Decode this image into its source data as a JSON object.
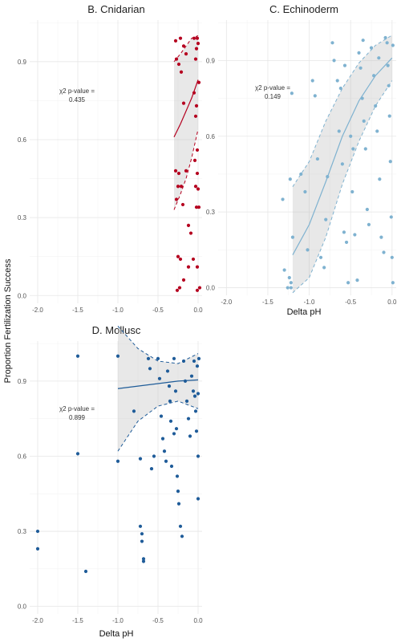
{
  "figure": {
    "ylabel": "Proportion Fertilization Success"
  },
  "chart_data": [
    {
      "type": "scatter",
      "title": "B. Cnidarian",
      "xlabel": "",
      "ylabel": "Proportion Fertilization Success",
      "xlim": [
        -2.1,
        0.05
      ],
      "ylim": [
        -0.03,
        1.06
      ],
      "xticks": [
        "-2.0",
        "-1.5",
        "-1.0",
        "-0.5",
        "0.0"
      ],
      "yticks": [
        "0.0",
        "0.3",
        "0.6",
        "0.9"
      ],
      "color": "#B5001F",
      "annotation": [
        "χ2 p-value =",
        "0.435"
      ],
      "grid": true,
      "series": [
        {
          "points": [
            [
              -0.28,
              0.98
            ],
            [
              -0.22,
              0.99
            ],
            [
              -0.18,
              0.96
            ],
            [
              -0.05,
              0.99
            ],
            [
              -0.01,
              0.99
            ],
            [
              0.0,
              0.97
            ],
            [
              -0.02,
              0.95
            ],
            [
              -0.15,
              0.93
            ],
            [
              -0.27,
              0.91
            ],
            [
              -0.24,
              0.89
            ],
            [
              -0.03,
              0.91
            ],
            [
              -0.21,
              0.86
            ],
            [
              -0.05,
              0.78
            ],
            [
              0.01,
              0.82
            ],
            [
              -0.18,
              0.74
            ],
            [
              -0.02,
              0.73
            ],
            [
              -0.03,
              0.69
            ],
            [
              -0.04,
              0.52
            ],
            [
              -0.01,
              0.56
            ],
            [
              -0.28,
              0.48
            ],
            [
              -0.24,
              0.47
            ],
            [
              -0.15,
              0.48
            ],
            [
              -0.01,
              0.47
            ],
            [
              -0.25,
              0.42
            ],
            [
              -0.21,
              0.42
            ],
            [
              -0.03,
              0.42
            ],
            [
              0.0,
              0.41
            ],
            [
              -0.27,
              0.37
            ],
            [
              -0.19,
              0.35
            ],
            [
              -0.02,
              0.34
            ],
            [
              0.01,
              0.34
            ],
            [
              -0.12,
              0.27
            ],
            [
              -0.09,
              0.24
            ],
            [
              -0.25,
              0.15
            ],
            [
              -0.22,
              0.14
            ],
            [
              -0.12,
              0.11
            ],
            [
              -0.06,
              0.14
            ],
            [
              -0.01,
              0.11
            ],
            [
              -0.18,
              0.06
            ],
            [
              -0.23,
              0.03
            ],
            [
              -0.26,
              0.02
            ],
            [
              0.02,
              0.03
            ],
            [
              -0.01,
              0.02
            ]
          ],
          "fit_x": [
            -0.3,
            -0.22,
            -0.15,
            -0.08,
            0.0
          ],
          "fit_y": [
            0.61,
            0.66,
            0.71,
            0.76,
            0.83
          ],
          "ci_upper": [
            0.9,
            0.93,
            0.96,
            0.99,
            1.0
          ],
          "ci_lower": [
            0.33,
            0.39,
            0.45,
            0.53,
            0.64
          ]
        }
      ]
    },
    {
      "type": "scatter",
      "title": "C. Echinoderm",
      "xlabel": "Delta pH",
      "ylabel": "",
      "xlim": [
        -2.1,
        0.05
      ],
      "ylim": [
        -0.03,
        1.06
      ],
      "xticks": [
        "-2.0",
        "-1.5",
        "-1.0",
        "-0.5",
        "0.0"
      ],
      "yticks": [
        "0.0",
        "0.3",
        "0.6",
        "0.9"
      ],
      "color": "#7FB2D0",
      "annotation": [
        "χ2 p-value =",
        "0.149"
      ],
      "grid": true,
      "series": [
        {
          "points": [
            [
              -1.32,
              0.35
            ],
            [
              -1.23,
              0.43
            ],
            [
              -1.21,
              0.77
            ],
            [
              -1.2,
              0.2
            ],
            [
              -1.24,
              0.04
            ],
            [
              -1.22,
              0.02
            ],
            [
              -1.26,
              0.0
            ],
            [
              -1.22,
              0.0
            ],
            [
              -1.3,
              0.07
            ],
            [
              -1.1,
              0.45
            ],
            [
              -1.05,
              0.38
            ],
            [
              -1.02,
              0.15
            ],
            [
              -0.96,
              0.82
            ],
            [
              -0.93,
              0.76
            ],
            [
              -0.9,
              0.51
            ],
            [
              -0.86,
              0.12
            ],
            [
              -0.82,
              0.08
            ],
            [
              -0.8,
              0.27
            ],
            [
              -0.78,
              0.44
            ],
            [
              -0.72,
              0.97
            ],
            [
              -0.7,
              0.9
            ],
            [
              -0.66,
              0.82
            ],
            [
              -0.64,
              0.62
            ],
            [
              -0.6,
              0.49
            ],
            [
              -0.58,
              0.22
            ],
            [
              -0.55,
              0.18
            ],
            [
              -0.53,
              0.02
            ],
            [
              -0.5,
              0.6
            ],
            [
              -0.48,
              0.38
            ],
            [
              -0.45,
              0.21
            ],
            [
              -0.42,
              0.03
            ],
            [
              -0.4,
              0.93
            ],
            [
              -0.38,
              0.87
            ],
            [
              -0.36,
              0.75
            ],
            [
              -0.34,
              0.66
            ],
            [
              -0.32,
              0.55
            ],
            [
              -0.3,
              0.31
            ],
            [
              -0.28,
              0.25
            ],
            [
              -0.25,
              0.95
            ],
            [
              -0.22,
              0.84
            ],
            [
              -0.2,
              0.72
            ],
            [
              -0.18,
              0.62
            ],
            [
              -0.15,
              0.43
            ],
            [
              -0.13,
              0.2
            ],
            [
              -0.1,
              0.14
            ],
            [
              -0.08,
              0.99
            ],
            [
              -0.06,
              0.97
            ],
            [
              -0.05,
              0.88
            ],
            [
              -0.04,
              0.8
            ],
            [
              -0.03,
              0.68
            ],
            [
              -0.02,
              0.5
            ],
            [
              -0.01,
              0.28
            ],
            [
              0.0,
              0.12
            ],
            [
              0.01,
              0.02
            ],
            [
              -0.47,
              0.55
            ],
            [
              -0.57,
              0.88
            ],
            [
              -0.62,
              0.79
            ],
            [
              -0.35,
              0.98
            ],
            [
              -0.16,
              0.91
            ],
            [
              0.01,
              0.96
            ]
          ],
          "fit_x": [
            -1.2,
            -1.0,
            -0.8,
            -0.6,
            -0.4,
            -0.2,
            0.0
          ],
          "fit_y": [
            0.13,
            0.25,
            0.42,
            0.6,
            0.74,
            0.84,
            0.91
          ],
          "ci_upper": [
            0.4,
            0.5,
            0.66,
            0.79,
            0.89,
            0.96,
            1.0
          ],
          "ci_lower": [
            -0.02,
            0.04,
            0.2,
            0.41,
            0.58,
            0.72,
            0.82
          ]
        }
      ]
    },
    {
      "type": "scatter",
      "title": "D. Mollusc",
      "xlabel": "Delta pH",
      "ylabel": "",
      "xlim": [
        -2.1,
        0.05
      ],
      "ylim": [
        -0.03,
        1.06
      ],
      "xticks": [
        "-2.0",
        "-1.5",
        "-1.0",
        "-0.5",
        "0.0"
      ],
      "yticks": [
        "0.0",
        "0.3",
        "0.6",
        "0.9"
      ],
      "color": "#1F5C99",
      "annotation": [
        "χ2 p-value =",
        "0.899"
      ],
      "grid": true,
      "series": [
        {
          "points": [
            [
              -2.0,
              0.3
            ],
            [
              -2.0,
              0.23
            ],
            [
              -1.5,
              1.0
            ],
            [
              -1.5,
              0.61
            ],
            [
              -1.4,
              0.14
            ],
            [
              -1.0,
              1.0
            ],
            [
              -1.0,
              0.58
            ],
            [
              -0.8,
              0.78
            ],
            [
              -0.72,
              0.59
            ],
            [
              -0.72,
              0.32
            ],
            [
              -0.7,
              0.29
            ],
            [
              -0.7,
              0.26
            ],
            [
              -0.68,
              0.19
            ],
            [
              -0.68,
              0.18
            ],
            [
              -0.62,
              0.99
            ],
            [
              -0.6,
              0.95
            ],
            [
              -0.58,
              0.55
            ],
            [
              -0.55,
              0.6
            ],
            [
              -0.5,
              0.99
            ],
            [
              -0.48,
              0.91
            ],
            [
              -0.46,
              0.76
            ],
            [
              -0.44,
              0.67
            ],
            [
              -0.42,
              0.62
            ],
            [
              -0.4,
              0.58
            ],
            [
              -0.38,
              0.94
            ],
            [
              -0.36,
              0.88
            ],
            [
              -0.35,
              0.82
            ],
            [
              -0.34,
              0.74
            ],
            [
              -0.33,
              0.56
            ],
            [
              -0.3,
              0.99
            ],
            [
              -0.28,
              0.86
            ],
            [
              -0.27,
              0.71
            ],
            [
              -0.26,
              0.52
            ],
            [
              -0.25,
              0.46
            ],
            [
              -0.24,
              0.41
            ],
            [
              -0.22,
              0.32
            ],
            [
              -0.2,
              0.28
            ],
            [
              -0.18,
              0.98
            ],
            [
              -0.16,
              0.9
            ],
            [
              -0.14,
              0.82
            ],
            [
              -0.12,
              0.75
            ],
            [
              -0.1,
              0.68
            ],
            [
              -0.08,
              0.92
            ],
            [
              -0.06,
              0.86
            ],
            [
              -0.05,
              0.98
            ],
            [
              -0.04,
              0.84
            ],
            [
              -0.03,
              0.78
            ],
            [
              -0.02,
              0.7
            ],
            [
              -0.01,
              0.96
            ],
            [
              0.0,
              0.85
            ],
            [
              0.0,
              0.6
            ],
            [
              0.0,
              0.43
            ],
            [
              0.01,
              0.99
            ],
            [
              -0.3,
              0.69
            ]
          ],
          "fit_x": [
            -1.0,
            -0.75,
            -0.5,
            -0.25,
            0.0
          ],
          "fit_y": [
            0.87,
            0.88,
            0.89,
            0.9,
            0.905
          ],
          "ci_upper": [
            1.12,
            1.03,
            0.98,
            0.97,
            1.01
          ],
          "ci_lower": [
            0.62,
            0.74,
            0.8,
            0.82,
            0.79
          ]
        }
      ]
    }
  ]
}
